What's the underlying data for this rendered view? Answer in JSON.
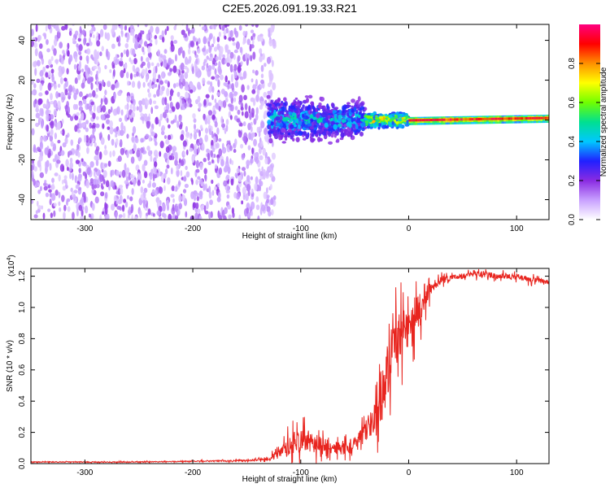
{
  "figure": {
    "title": "C2E5.2026.091.19.33.R21"
  },
  "chart_data": [
    {
      "type": "heatmap",
      "name": "spectrogram",
      "title": "C2E5.2026.091.19.33.R21",
      "xlabel": "Height of straight line (km)",
      "ylabel": "Frequency (Hz)",
      "xlim": [
        -350,
        130
      ],
      "ylim": [
        -50,
        48
      ],
      "xticks": [
        -300,
        -200,
        -100,
        0,
        100
      ],
      "xtick_labels": [
        "-300",
        "-200",
        "-100",
        "0",
        "100"
      ],
      "yticks": [
        -40,
        -20,
        0,
        20,
        40
      ],
      "ytick_labels": [
        "-40",
        "-20",
        "0",
        "20",
        "40"
      ],
      "colorbar": {
        "label": "Normalized spectral amplitude",
        "range": [
          0.0,
          1.0
        ],
        "ticks": [
          0.0,
          0.2,
          0.4,
          0.6,
          0.8
        ],
        "tick_labels": [
          "0.0",
          "0.2",
          "0.4",
          "0.6",
          "0.8"
        ],
        "colors": [
          "#ffffff",
          "#c8a0ff",
          "#8a2be2",
          "#2020ff",
          "#00c8ff",
          "#00e090",
          "#70ff00",
          "#ffff00",
          "#ff9000",
          "#ff0000",
          "#ff0080"
        ]
      },
      "regions": [
        {
          "x_range": [
            -350,
            -130
          ],
          "freq_halfwidth": 50,
          "amplitude": [
            0.0,
            0.15
          ],
          "pattern": "speckle noise"
        },
        {
          "x_range": [
            -130,
            -40
          ],
          "freq_halfwidth": 12,
          "amplitude": [
            0.1,
            0.45
          ],
          "pattern": "broadening band"
        },
        {
          "x_range": [
            -40,
            0
          ],
          "freq_halfwidth": 4,
          "amplitude": [
            0.3,
            0.9
          ],
          "pattern": "narrowing band"
        },
        {
          "x_range": [
            0,
            130
          ],
          "freq_halfwidth": 3,
          "amplitude": [
            0.5,
            1.0
          ],
          "pattern": "narrow carrier line near 0 Hz"
        }
      ]
    },
    {
      "type": "line",
      "name": "snr",
      "xlabel": "Height of straight line (km)",
      "ylabel": "SNR (10 * v/v)",
      "multiplier_label": "(x10",
      "multiplier_exp": "4",
      "multiplier_close": ")",
      "xlim": [
        -350,
        130
      ],
      "ylim": [
        0.0,
        1.25
      ],
      "xticks": [
        -300,
        -200,
        -100,
        0,
        100
      ],
      "xtick_labels": [
        "-300",
        "-200",
        "-100",
        "0",
        "100"
      ],
      "yticks": [
        0.0,
        0.2,
        0.4,
        0.6,
        0.8,
        1.0,
        1.2
      ],
      "ytick_labels": [
        "0.0",
        "0.2",
        "0.4",
        "0.6",
        "0.8",
        "1.0",
        "1.2"
      ],
      "color": "#e8251f",
      "series": [
        {
          "name": "SNR",
          "x": [
            -350,
            -300,
            -250,
            -200,
            -150,
            -130,
            -115,
            -110,
            -105,
            -100,
            -90,
            -80,
            -70,
            -60,
            -50,
            -45,
            -40,
            -35,
            -30,
            -25,
            -20,
            -15,
            -10,
            -5,
            0,
            5,
            10,
            15,
            20,
            25,
            30,
            40,
            50,
            60,
            70,
            80,
            90,
            100,
            110,
            120,
            130
          ],
          "y": [
            0.01,
            0.01,
            0.01,
            0.015,
            0.02,
            0.03,
            0.08,
            0.13,
            0.14,
            0.15,
            0.13,
            0.12,
            0.1,
            0.1,
            0.12,
            0.16,
            0.22,
            0.26,
            0.3,
            0.42,
            0.6,
            0.75,
            0.82,
            0.85,
            0.88,
            0.9,
            1.0,
            1.08,
            1.12,
            1.15,
            1.18,
            1.19,
            1.2,
            1.21,
            1.22,
            1.2,
            1.2,
            1.2,
            1.18,
            1.17,
            1.16
          ],
          "noise_amplitude": [
            0.005,
            0.005,
            0.005,
            0.005,
            0.008,
            0.015,
            0.08,
            0.12,
            0.12,
            0.12,
            0.1,
            0.08,
            0.07,
            0.07,
            0.08,
            0.1,
            0.12,
            0.15,
            0.2,
            0.28,
            0.3,
            0.3,
            0.28,
            0.25,
            0.22,
            0.2,
            0.18,
            0.14,
            0.08,
            0.05,
            0.04,
            0.03,
            0.03,
            0.03,
            0.03,
            0.03,
            0.03,
            0.03,
            0.03,
            0.03,
            0.03
          ]
        }
      ]
    }
  ]
}
